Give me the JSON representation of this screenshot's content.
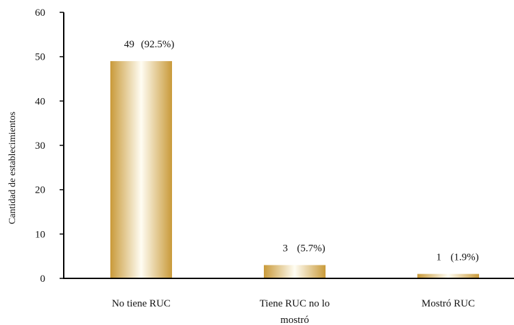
{
  "chart_data": {
    "type": "bar",
    "title": "",
    "xlabel": "",
    "ylabel": "Cantidad de establecimientos",
    "ylim": [
      0,
      60
    ],
    "yticks": [
      0,
      10,
      20,
      30,
      40,
      50,
      60
    ],
    "grid": false,
    "categories": [
      {
        "lines": [
          "No tiene RUC"
        ]
      },
      {
        "lines": [
          "Tiene RUC no lo",
          "mostró"
        ]
      },
      {
        "lines": [
          "Mostró RUC"
        ]
      }
    ],
    "values": [
      49,
      3,
      1
    ],
    "value_labels": [
      "49",
      "3",
      "1"
    ],
    "percent_labels": [
      "(92.5%)",
      "(5.7%)",
      "(1.9%)"
    ],
    "bar_colors": {
      "edge": "#c99a3a",
      "highlight": "#fffdf3"
    }
  }
}
